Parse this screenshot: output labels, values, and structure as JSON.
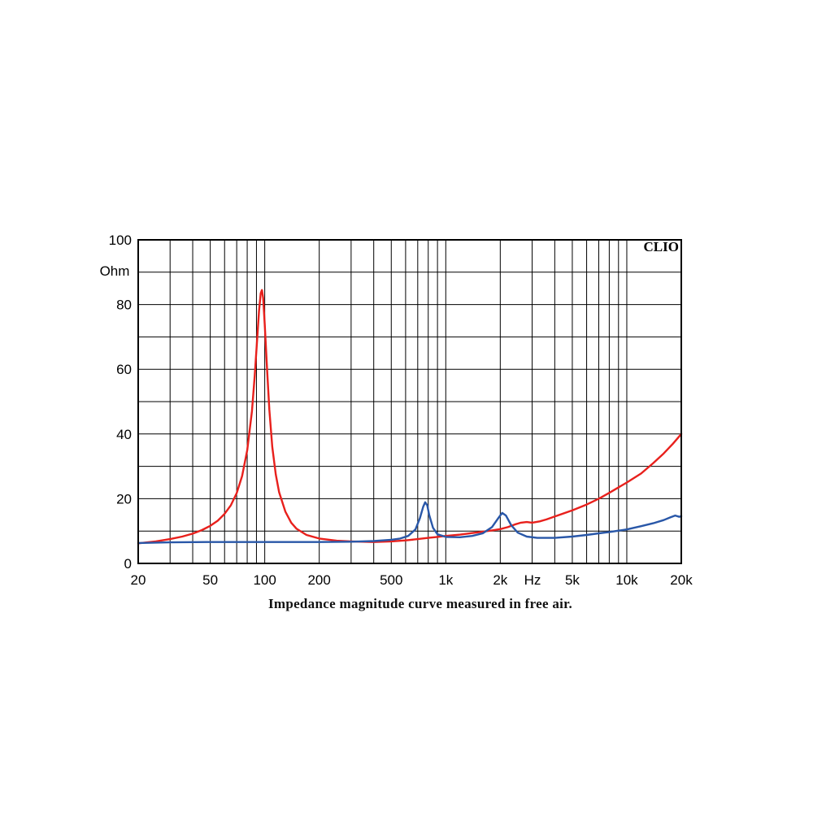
{
  "chart_data": {
    "type": "line",
    "x_scale": "log",
    "xlim": [
      20,
      20000
    ],
    "ylim": [
      0,
      100
    ],
    "grid": true,
    "legend": "none",
    "caption": "Impedance magnitude curve measured in free air.",
    "brand": "CLIO",
    "ylabel": "Ohm",
    "x_unit": "Hz",
    "x_ticks": [
      {
        "value": 20,
        "label": "20"
      },
      {
        "value": 50,
        "label": "50"
      },
      {
        "value": 100,
        "label": "100"
      },
      {
        "value": 200,
        "label": "200"
      },
      {
        "value": 500,
        "label": "500"
      },
      {
        "value": 1000,
        "label": "1k"
      },
      {
        "value": 2000,
        "label": "2k"
      },
      {
        "value": 5000,
        "label": "5k"
      },
      {
        "value": 10000,
        "label": "10k"
      },
      {
        "value": 20000,
        "label": "20k"
      }
    ],
    "y_ticks": [
      {
        "value": 0,
        "label": "0"
      },
      {
        "value": 20,
        "label": "20"
      },
      {
        "value": 40,
        "label": "40"
      },
      {
        "value": 60,
        "label": "60"
      },
      {
        "value": 80,
        "label": "80"
      },
      {
        "value": 100,
        "label": "100"
      }
    ],
    "series": [
      {
        "color": "#e8201c",
        "points": [
          [
            20,
            6.2
          ],
          [
            25,
            6.8
          ],
          [
            30,
            7.5
          ],
          [
            35,
            8.3
          ],
          [
            40,
            9.2
          ],
          [
            45,
            10.3
          ],
          [
            50,
            11.6
          ],
          [
            55,
            13.2
          ],
          [
            60,
            15.3
          ],
          [
            65,
            18.0
          ],
          [
            70,
            21.7
          ],
          [
            75,
            27.0
          ],
          [
            80,
            35.0
          ],
          [
            85,
            47.0
          ],
          [
            88,
            58.0
          ],
          [
            91,
            70.0
          ],
          [
            93,
            78.0
          ],
          [
            95,
            83.5
          ],
          [
            96.5,
            84.5
          ],
          [
            98,
            82.0
          ],
          [
            100,
            74.0
          ],
          [
            103,
            60.0
          ],
          [
            106,
            47.5
          ],
          [
            110,
            36.0
          ],
          [
            115,
            27.5
          ],
          [
            120,
            22.0
          ],
          [
            130,
            16.0
          ],
          [
            140,
            12.6
          ],
          [
            150,
            10.7
          ],
          [
            170,
            8.8
          ],
          [
            200,
            7.7
          ],
          [
            250,
            7.0
          ],
          [
            300,
            6.8
          ],
          [
            400,
            6.6
          ],
          [
            500,
            6.8
          ],
          [
            600,
            7.1
          ],
          [
            700,
            7.5
          ],
          [
            800,
            7.9
          ],
          [
            900,
            8.2
          ],
          [
            1000,
            8.5
          ],
          [
            1200,
            8.9
          ],
          [
            1500,
            9.6
          ],
          [
            1800,
            10.2
          ],
          [
            2000,
            10.6
          ],
          [
            2200,
            11.2
          ],
          [
            2400,
            12.0
          ],
          [
            2600,
            12.6
          ],
          [
            2800,
            12.8
          ],
          [
            3000,
            12.6
          ],
          [
            3300,
            13.0
          ],
          [
            3600,
            13.6
          ],
          [
            4000,
            14.5
          ],
          [
            5000,
            16.4
          ],
          [
            6000,
            18.2
          ],
          [
            7000,
            20.0
          ],
          [
            8000,
            21.8
          ],
          [
            10000,
            25.0
          ],
          [
            12000,
            27.8
          ],
          [
            14000,
            31.0
          ],
          [
            16000,
            34.0
          ],
          [
            18000,
            37.0
          ],
          [
            20000,
            40.0
          ]
        ]
      },
      {
        "color": "#2957a8",
        "points": [
          [
            20,
            6.3
          ],
          [
            30,
            6.5
          ],
          [
            50,
            6.6
          ],
          [
            100,
            6.6
          ],
          [
            200,
            6.6
          ],
          [
            300,
            6.7
          ],
          [
            400,
            6.9
          ],
          [
            500,
            7.3
          ],
          [
            560,
            7.7
          ],
          [
            620,
            8.5
          ],
          [
            680,
            10.5
          ],
          [
            720,
            14.0
          ],
          [
            750,
            17.5
          ],
          [
            770,
            18.9
          ],
          [
            790,
            18.0
          ],
          [
            810,
            15.0
          ],
          [
            850,
            11.0
          ],
          [
            900,
            9.0
          ],
          [
            1000,
            8.2
          ],
          [
            1200,
            8.1
          ],
          [
            1400,
            8.5
          ],
          [
            1600,
            9.3
          ],
          [
            1800,
            11.2
          ],
          [
            1950,
            14.0
          ],
          [
            2050,
            15.6
          ],
          [
            2150,
            14.8
          ],
          [
            2300,
            11.8
          ],
          [
            2500,
            9.5
          ],
          [
            2800,
            8.3
          ],
          [
            3200,
            7.9
          ],
          [
            4000,
            7.9
          ],
          [
            5000,
            8.3
          ],
          [
            6000,
            8.8
          ],
          [
            7000,
            9.3
          ],
          [
            8000,
            9.7
          ],
          [
            10000,
            10.5
          ],
          [
            12000,
            11.5
          ],
          [
            14000,
            12.4
          ],
          [
            16000,
            13.4
          ],
          [
            17500,
            14.3
          ],
          [
            18500,
            14.8
          ],
          [
            19500,
            14.4
          ],
          [
            20000,
            14.6
          ]
        ]
      }
    ]
  }
}
